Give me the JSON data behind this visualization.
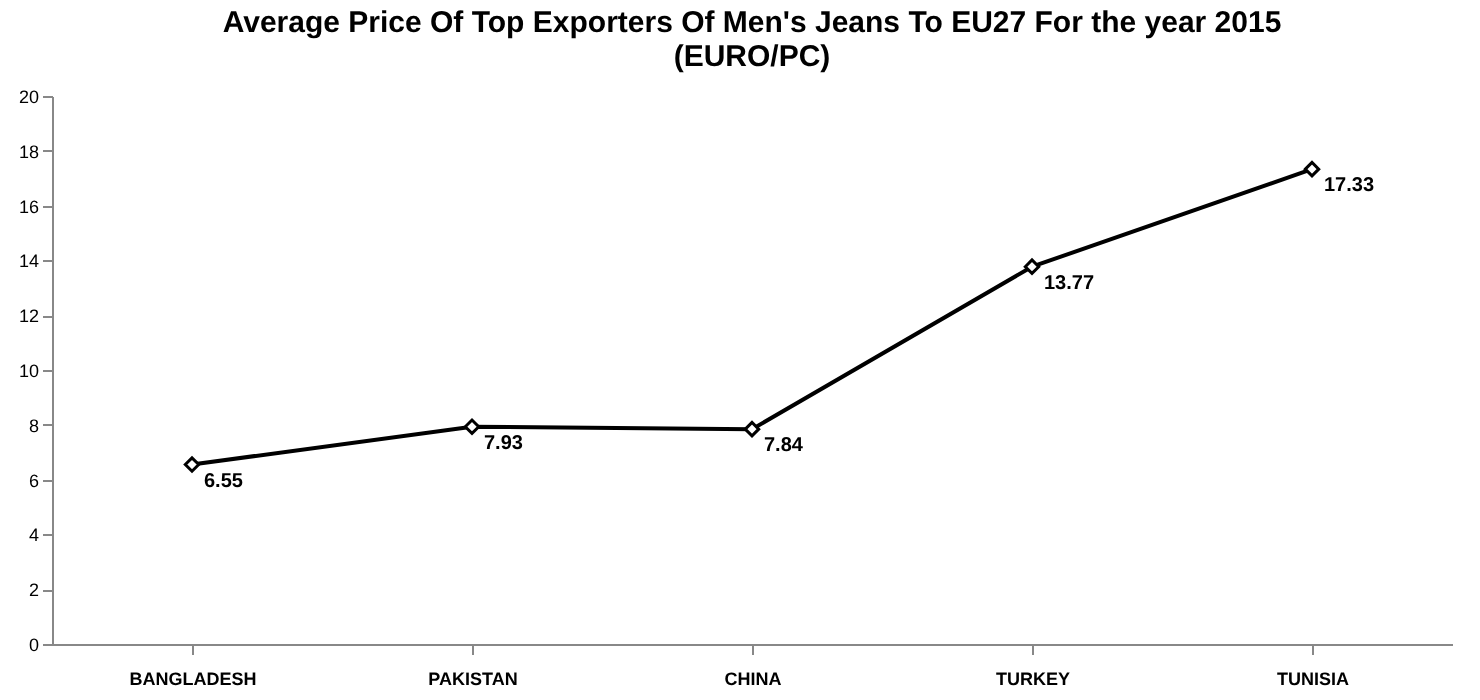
{
  "chart_data": {
    "type": "line",
    "title": "Average Price Of Top Exporters Of Men's Jeans To EU27 For the year 2015 (EURO/PC)",
    "categories": [
      "BANGLADESH",
      "PAKISTAN",
      "CHINA",
      "TURKEY",
      "TUNISIA"
    ],
    "series": [
      {
        "color": "#000000",
        "values": [
          6.55,
          7.93,
          7.84,
          13.77,
          17.33
        ]
      }
    ],
    "ylim": [
      0,
      20
    ],
    "yticks": [
      0,
      2,
      4,
      6,
      8,
      10,
      12,
      14,
      16,
      18,
      20
    ],
    "grid": false,
    "legend": false,
    "marker": "diamond",
    "line_style": "solid",
    "data_labels": true
  }
}
